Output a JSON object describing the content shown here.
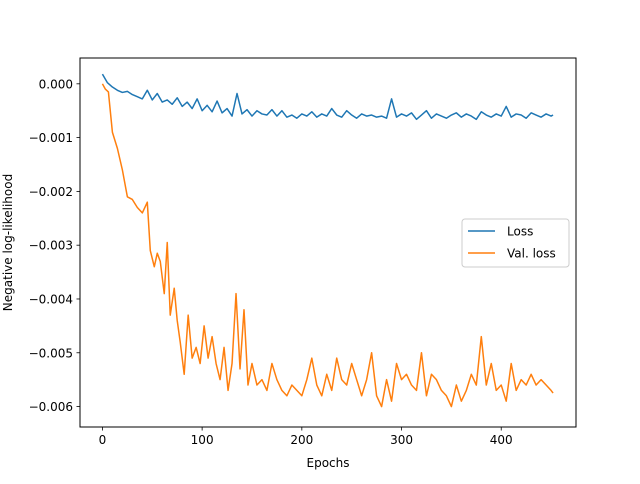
{
  "chart_data": {
    "type": "line",
    "title": "",
    "xlabel": "Epochs",
    "ylabel": "Negative log-likelihood",
    "xlim": [
      -22.5,
      475
    ],
    "ylim": [
      -0.00638,
      0.00048
    ],
    "xticks": [
      0,
      100,
      200,
      300,
      400
    ],
    "yticks": [
      0.0,
      -0.001,
      -0.002,
      -0.003,
      -0.004,
      -0.005,
      -0.006
    ],
    "xtick_labels": [
      "0",
      "100",
      "200",
      "300",
      "400"
    ],
    "ytick_labels": [
      "0.000",
      "−0.001",
      "−0.002",
      "−0.003",
      "−0.004",
      "−0.005",
      "−0.006"
    ],
    "grid": false,
    "legend_position": "center-right",
    "series": [
      {
        "name": "Loss",
        "color": "#1f77b4",
        "x": [
          0,
          5,
          10,
          15,
          20,
          25,
          30,
          35,
          40,
          45,
          50,
          55,
          60,
          65,
          70,
          75,
          80,
          85,
          90,
          95,
          100,
          105,
          110,
          115,
          120,
          125,
          130,
          135,
          140,
          145,
          150,
          155,
          160,
          165,
          170,
          175,
          180,
          185,
          190,
          195,
          200,
          205,
          210,
          215,
          220,
          225,
          230,
          235,
          240,
          245,
          250,
          255,
          260,
          265,
          270,
          275,
          280,
          285,
          290,
          295,
          300,
          305,
          310,
          315,
          320,
          325,
          330,
          335,
          340,
          345,
          350,
          355,
          360,
          365,
          370,
          375,
          380,
          385,
          390,
          395,
          400,
          405,
          410,
          415,
          420,
          425,
          430,
          435,
          440,
          445,
          450,
          452
        ],
        "y": [
          0.00018,
          2e-05,
          -6e-05,
          -0.00012,
          -0.00016,
          -0.00014,
          -0.0002,
          -0.00024,
          -0.00028,
          -0.00012,
          -0.0003,
          -0.00018,
          -0.00034,
          -0.0003,
          -0.00038,
          -0.00026,
          -0.00042,
          -0.00034,
          -0.00046,
          -0.00028,
          -0.0005,
          -0.0004,
          -0.00052,
          -0.00032,
          -0.00054,
          -0.00046,
          -0.0006,
          -0.00018,
          -0.00056,
          -0.00048,
          -0.0006,
          -0.0005,
          -0.00056,
          -0.00058,
          -0.00048,
          -0.0006,
          -0.0005,
          -0.00062,
          -0.00058,
          -0.00064,
          -0.00056,
          -0.0006,
          -0.00052,
          -0.00062,
          -0.00056,
          -0.0006,
          -0.00046,
          -0.00058,
          -0.00062,
          -0.0005,
          -0.00058,
          -0.00064,
          -0.00056,
          -0.0006,
          -0.00058,
          -0.00062,
          -0.0006,
          -0.00064,
          -0.00028,
          -0.00062,
          -0.00056,
          -0.0006,
          -0.00054,
          -0.00066,
          -0.00058,
          -0.0005,
          -0.00064,
          -0.00056,
          -0.0006,
          -0.00064,
          -0.00058,
          -0.00054,
          -0.00062,
          -0.00056,
          -0.0006,
          -0.00066,
          -0.00052,
          -0.00058,
          -0.00062,
          -0.00056,
          -0.0006,
          -0.00042,
          -0.00062,
          -0.00056,
          -0.00058,
          -0.00064,
          -0.00054,
          -0.00058,
          -0.00062,
          -0.00056,
          -0.0006,
          -0.00058
        ]
      },
      {
        "name": "Val. loss",
        "color": "#ff7f0e",
        "x": [
          0,
          3,
          6,
          10,
          15,
          20,
          25,
          30,
          35,
          40,
          45,
          48,
          52,
          55,
          58,
          62,
          65,
          68,
          72,
          75,
          78,
          82,
          86,
          90,
          94,
          98,
          102,
          106,
          110,
          114,
          118,
          122,
          126,
          130,
          134,
          138,
          142,
          146,
          150,
          155,
          160,
          165,
          170,
          175,
          180,
          185,
          190,
          195,
          200,
          205,
          210,
          215,
          220,
          225,
          230,
          235,
          240,
          245,
          250,
          255,
          260,
          265,
          270,
          275,
          280,
          285,
          290,
          295,
          300,
          305,
          310,
          315,
          320,
          325,
          330,
          335,
          340,
          345,
          350,
          355,
          360,
          365,
          370,
          375,
          380,
          385,
          390,
          395,
          400,
          405,
          410,
          415,
          420,
          425,
          430,
          435,
          440,
          445,
          450,
          452
        ],
        "y": [
          0.0,
          -0.0001,
          -0.00015,
          -0.0009,
          -0.0012,
          -0.0016,
          -0.0021,
          -0.00215,
          -0.0023,
          -0.0024,
          -0.0022,
          -0.0031,
          -0.0034,
          -0.00315,
          -0.0033,
          -0.0039,
          -0.00295,
          -0.0043,
          -0.0038,
          -0.0044,
          -0.0048,
          -0.0054,
          -0.0043,
          -0.0051,
          -0.0049,
          -0.0052,
          -0.0045,
          -0.0051,
          -0.0047,
          -0.0052,
          -0.0055,
          -0.0049,
          -0.0057,
          -0.0052,
          -0.0039,
          -0.0053,
          -0.0042,
          -0.0056,
          -0.0052,
          -0.0056,
          -0.0055,
          -0.0057,
          -0.0052,
          -0.0055,
          -0.0057,
          -0.0058,
          -0.0056,
          -0.0057,
          -0.0058,
          -0.0055,
          -0.0051,
          -0.0056,
          -0.0058,
          -0.0054,
          -0.0057,
          -0.0051,
          -0.0055,
          -0.0056,
          -0.0052,
          -0.0055,
          -0.0058,
          -0.0055,
          -0.005,
          -0.0058,
          -0.006,
          -0.0055,
          -0.0059,
          -0.0052,
          -0.0055,
          -0.0054,
          -0.0056,
          -0.0057,
          -0.005,
          -0.0058,
          -0.0054,
          -0.0055,
          -0.0057,
          -0.0058,
          -0.006,
          -0.0056,
          -0.0059,
          -0.0057,
          -0.0054,
          -0.0056,
          -0.0047,
          -0.0056,
          -0.0052,
          -0.0057,
          -0.0056,
          -0.0059,
          -0.0052,
          -0.0057,
          -0.0055,
          -0.0056,
          -0.0054,
          -0.0056,
          -0.0055,
          -0.0056,
          -0.0057,
          -0.00575
        ]
      }
    ]
  }
}
